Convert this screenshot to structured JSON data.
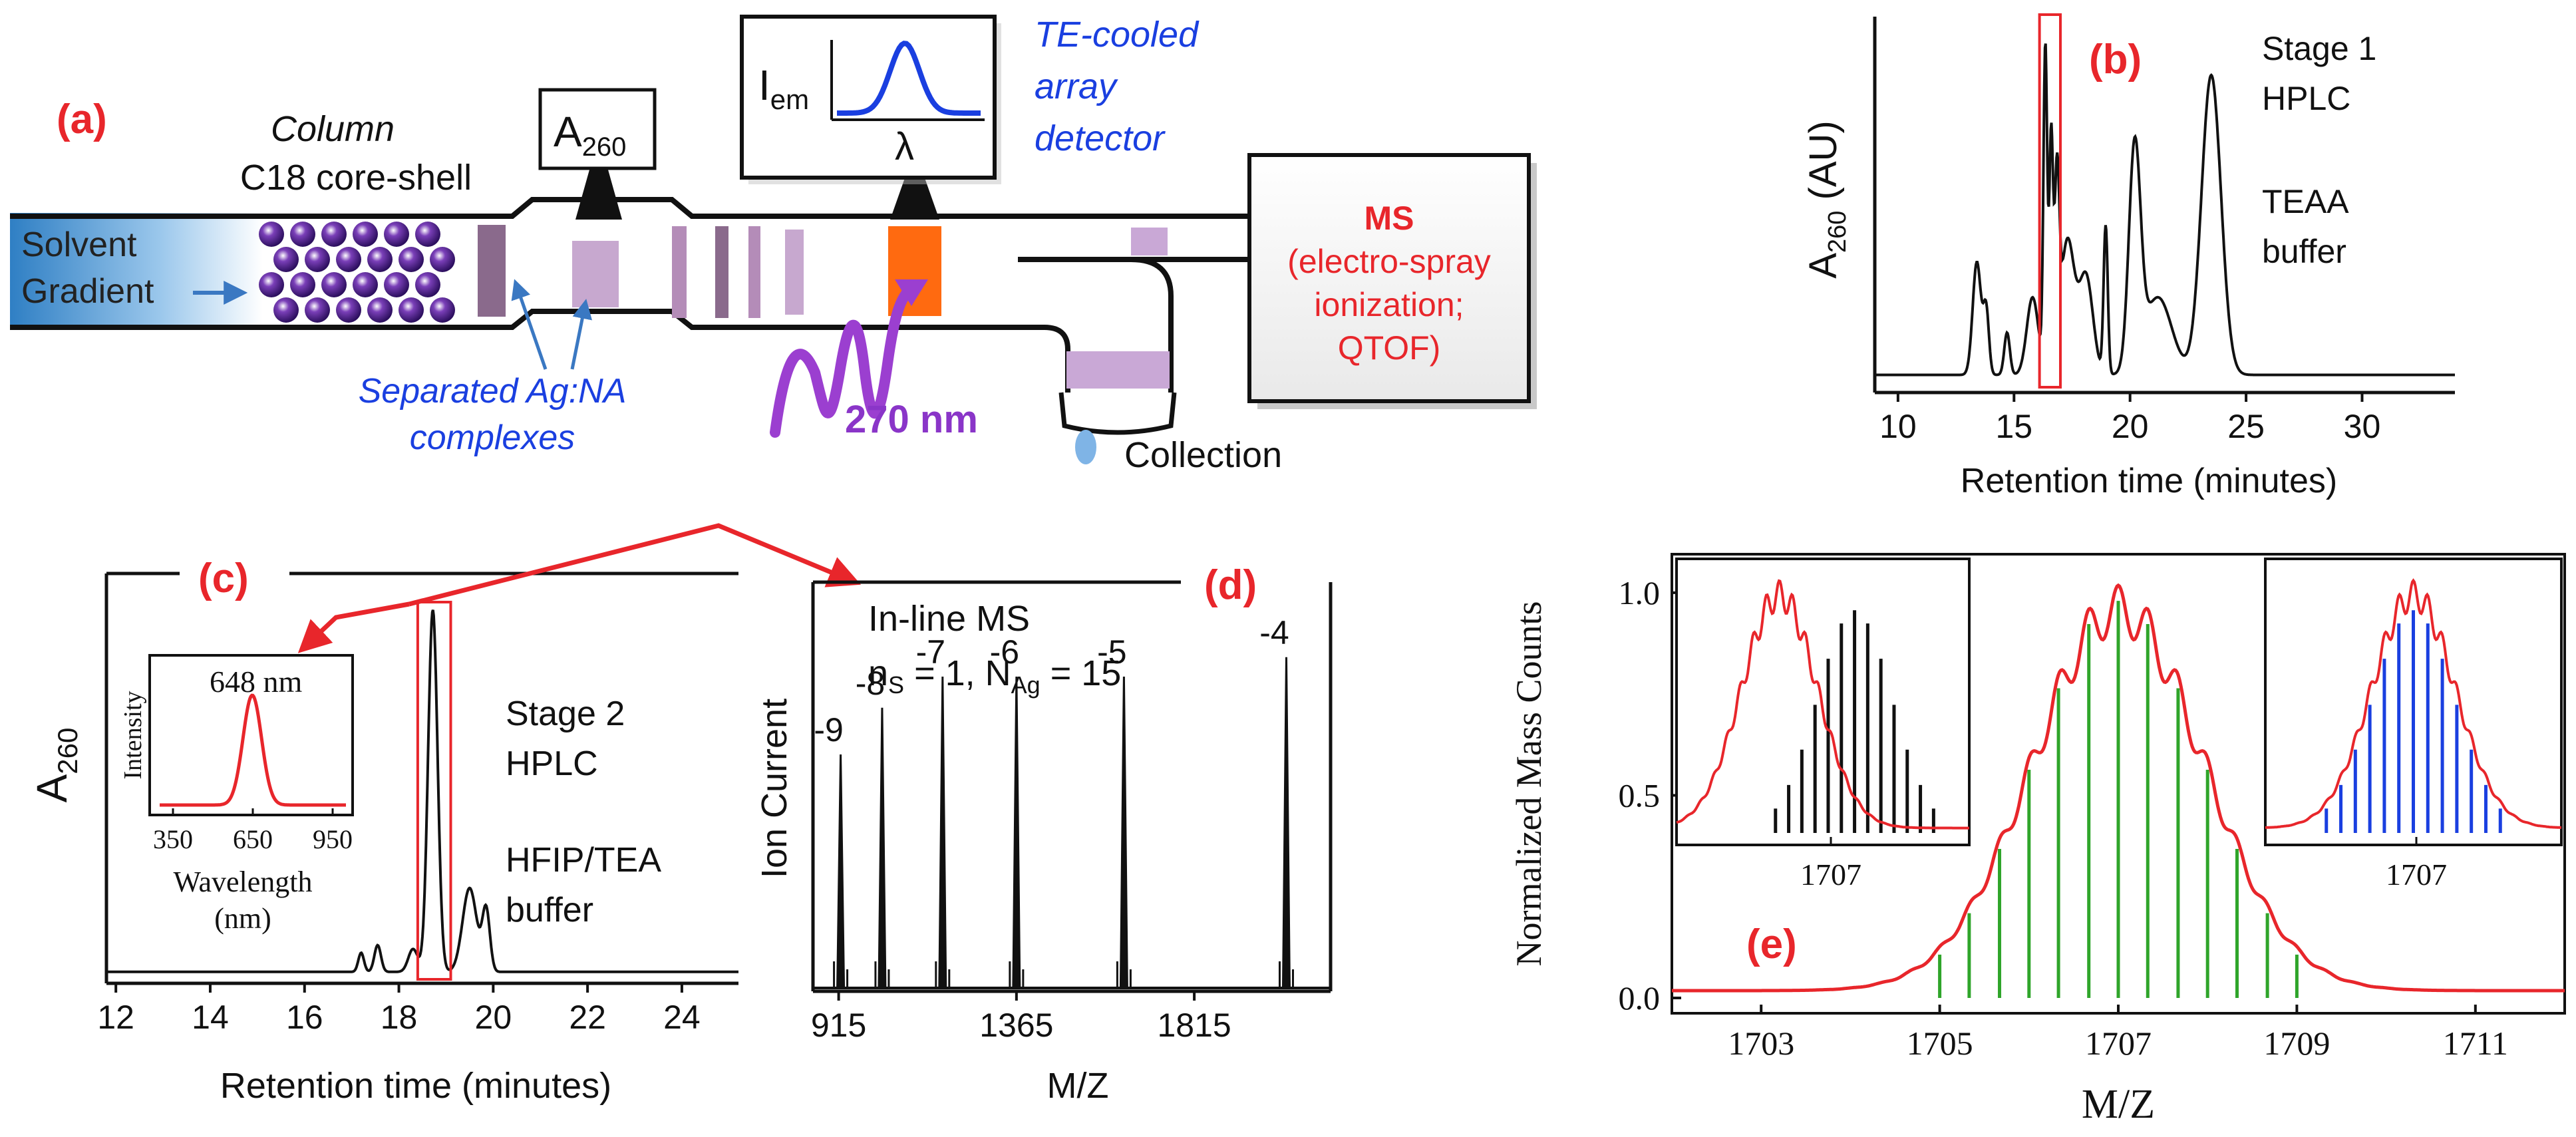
{
  "panel_labels": {
    "a": "(a)",
    "b": "(b)",
    "c": "(c)",
    "d": "(d)",
    "e": "(e)"
  },
  "colors": {
    "accent_red": "#e8262b",
    "blue": "#1a3fe0",
    "purple": "#8a35c8",
    "green": "#2fa52a",
    "orange": "#ff6a10"
  },
  "panel_a": {
    "column_title": "Column",
    "column_subtitle": "C18 core-shell",
    "solvent_line1": "Solvent",
    "solvent_line2": "Gradient",
    "a260_base": "A",
    "a260_sub": "260",
    "detector_inset_y_base": "I",
    "detector_inset_y_sub": "em",
    "detector_inset_x": "λ",
    "detector_line1": "TE-cooled",
    "detector_line2": "array",
    "detector_line3": "detector",
    "ms_title": "MS",
    "ms_line1": "(electro-spray",
    "ms_line2": "ionization;",
    "ms_line3": "QTOF)",
    "separated_line1": "Separated Ag:NA",
    "separated_line2": "complexes",
    "excitation": "270 nm",
    "collection": "Collection"
  },
  "chart_data": [
    {
      "id": "b",
      "type": "line",
      "title": "",
      "xlabel": "Retention time (minutes)",
      "ylabel_base": "A",
      "ylabel_sub": "260",
      "ylabel_tail": " (AU)",
      "xlim": [
        9,
        34
      ],
      "ylim": [
        0,
        1
      ],
      "xticks": [
        10,
        15,
        20,
        25,
        30
      ],
      "annotations": [
        "Stage 1",
        "HPLC",
        "TEAA",
        "buffer"
      ],
      "highlight_x": [
        16.1,
        17.0
      ],
      "peaks": [
        {
          "x": 13.4,
          "h": 0.32,
          "w": 0.18
        },
        {
          "x": 13.8,
          "h": 0.18,
          "w": 0.12
        },
        {
          "x": 14.7,
          "h": 0.12,
          "w": 0.12
        },
        {
          "x": 15.8,
          "h": 0.22,
          "w": 0.25
        },
        {
          "x": 16.35,
          "h": 0.92,
          "w": 0.08
        },
        {
          "x": 16.6,
          "h": 0.66,
          "w": 0.08
        },
        {
          "x": 16.85,
          "h": 0.5,
          "w": 0.1
        },
        {
          "x": 17.3,
          "h": 0.38,
          "w": 0.3
        },
        {
          "x": 18.1,
          "h": 0.28,
          "w": 0.3
        },
        {
          "x": 18.95,
          "h": 0.42,
          "w": 0.09
        },
        {
          "x": 20.2,
          "h": 0.62,
          "w": 0.25
        },
        {
          "x": 21.2,
          "h": 0.22,
          "w": 0.6
        },
        {
          "x": 23.5,
          "h": 0.85,
          "w": 0.42
        }
      ]
    },
    {
      "id": "c",
      "type": "line",
      "title": "",
      "xlabel": "Retention time (minutes)",
      "ylabel_base": "A",
      "ylabel_sub": "260",
      "xlim": [
        11.8,
        25.2
      ],
      "ylim": [
        0,
        1
      ],
      "xticks": [
        12,
        14,
        16,
        18,
        20,
        22,
        24
      ],
      "annotations": [
        "Stage 2",
        "HPLC",
        "HFIP/TEA",
        "buffer"
      ],
      "highlight_x": [
        18.4,
        19.1
      ],
      "peaks": [
        {
          "x": 17.2,
          "h": 0.05,
          "w": 0.06
        },
        {
          "x": 17.55,
          "h": 0.07,
          "w": 0.07
        },
        {
          "x": 18.3,
          "h": 0.06,
          "w": 0.1
        },
        {
          "x": 18.72,
          "h": 0.95,
          "w": 0.1
        },
        {
          "x": 19.5,
          "h": 0.22,
          "w": 0.15
        },
        {
          "x": 19.85,
          "h": 0.16,
          "w": 0.08
        }
      ]
    },
    {
      "id": "c_inset",
      "type": "line",
      "title": "648 nm",
      "xlabel_line1": "Wavelength",
      "xlabel_line2": "(nm)",
      "ylabel": "Intensity",
      "xlim": [
        300,
        1000
      ],
      "xticks": [
        350,
        650,
        950
      ],
      "peak": {
        "x": 648,
        "sigma": 35
      }
    },
    {
      "id": "d",
      "type": "line",
      "title": "In-line MS",
      "annotation_ns": "n",
      "annotation_ns_sub": "S",
      "annotation_ns_val": " = 1, N",
      "annotation_nag_sub": "Ag",
      "annotation_nag_val": " = 15",
      "xlabel": "M/Z",
      "ylabel": "Ion Current",
      "xlim": [
        850,
        2160
      ],
      "xticks": [
        915,
        1365,
        1815
      ],
      "peaks": [
        {
          "x": 920,
          "h": 0.6,
          "label": "-9"
        },
        {
          "x": 1025,
          "h": 0.72,
          "label": "-8"
        },
        {
          "x": 1178,
          "h": 0.8,
          "label": "-7"
        },
        {
          "x": 1365,
          "h": 0.8,
          "label": "-6"
        },
        {
          "x": 1637,
          "h": 0.8,
          "label": "-5"
        },
        {
          "x": 2048,
          "h": 0.85,
          "label": "-4"
        }
      ]
    },
    {
      "id": "e",
      "type": "line",
      "xlabel": "M/Z",
      "ylabel": "Normalized Mass Counts",
      "xlim": [
        1702,
        1712
      ],
      "ylim": [
        0,
        1.1
      ],
      "xticks": [
        1703,
        1705,
        1707,
        1709,
        1711
      ],
      "yticks": [
        "0.0",
        "0.5",
        "1.0"
      ],
      "ytick_values": [
        0,
        0.5,
        1.0
      ],
      "center": 1707.0,
      "sigma": 0.95,
      "sticks": [
        1705,
        1705.33,
        1705.67,
        1706,
        1706.33,
        1706.67,
        1707,
        1707.33,
        1707.67,
        1708,
        1708.33,
        1708.67,
        1709
      ]
    },
    {
      "id": "e_inset_left",
      "type": "bar",
      "xtick": "1707",
      "xlim": [
        1702.8,
        1710.2
      ],
      "red_center": 1705.4,
      "stick_center": 1707.3
    },
    {
      "id": "e_inset_right",
      "type": "bar",
      "xtick": "1707",
      "xlim": [
        1703.6,
        1710.4
      ],
      "red_center": 1707.0,
      "stick_center": 1707.0
    }
  ]
}
